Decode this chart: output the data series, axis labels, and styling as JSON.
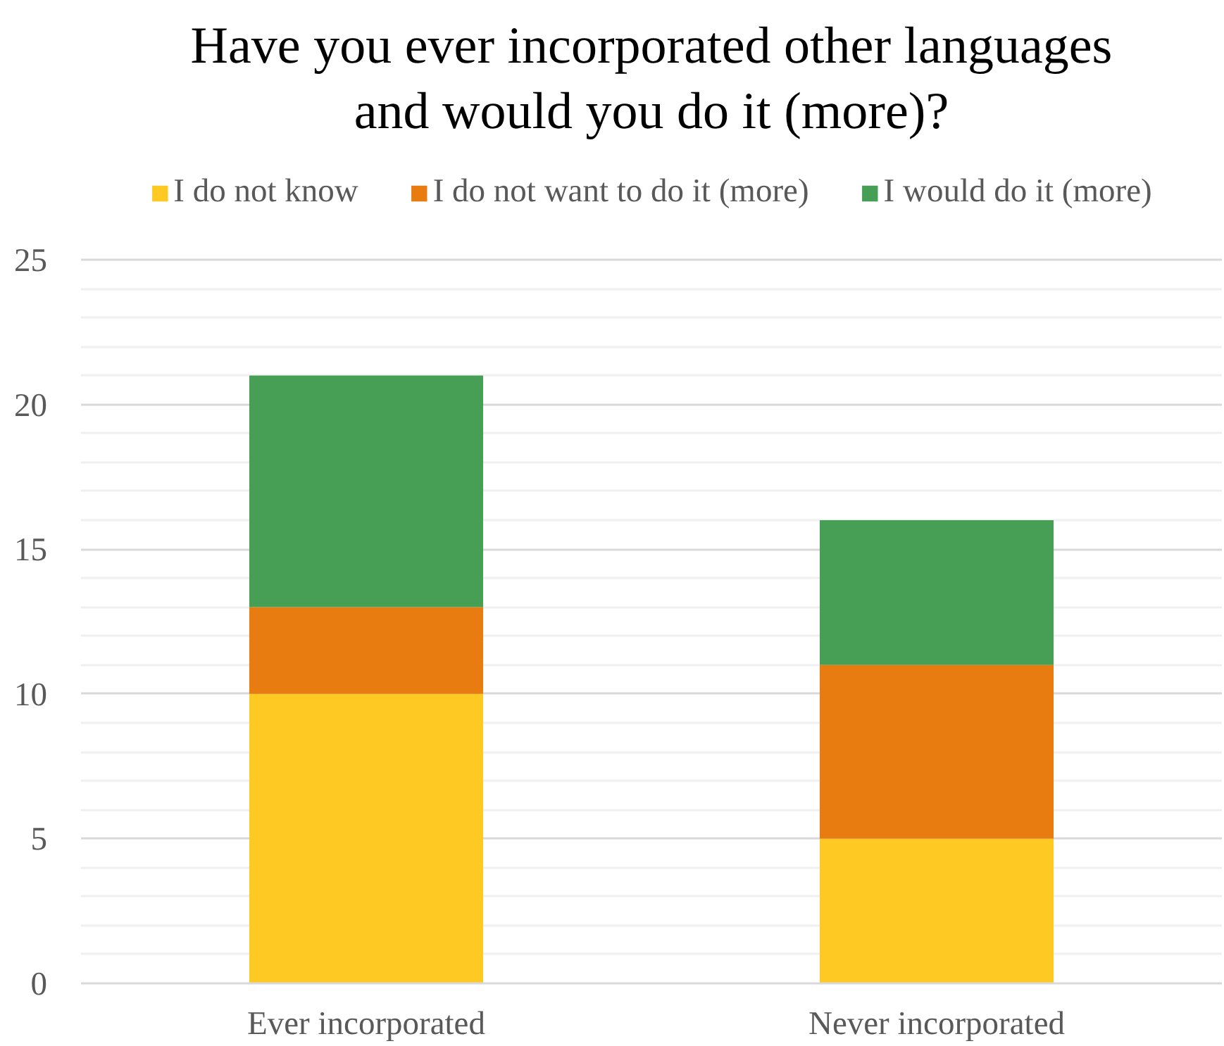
{
  "chart_data": {
    "type": "bar",
    "stacked": true,
    "title": "Have you ever incorporated other languages\nand would you do it (more)?",
    "categories": [
      "Ever incorporated",
      "Never incorporated"
    ],
    "series": [
      {
        "name": "I do not know",
        "color": "#fdc922",
        "values": [
          10,
          5
        ]
      },
      {
        "name": "I do not want to do it (more)",
        "color": "#e87c11",
        "values": [
          3,
          6
        ]
      },
      {
        "name": "I would do it (more)",
        "color": "#479f55",
        "values": [
          8,
          5
        ]
      }
    ],
    "ylim": [
      0,
      25
    ],
    "yticks": [
      0,
      {
        "value": 1,
        "label": null
      },
      {
        "value": 2,
        "label": null
      },
      {
        "value": 3,
        "label": null
      },
      {
        "value": 4,
        "label": null
      },
      5,
      {
        "value": 6,
        "label": null
      },
      {
        "value": 7,
        "label": null
      },
      {
        "value": 8,
        "label": null
      },
      {
        "value": 9,
        "label": null
      },
      10,
      {
        "value": 11,
        "label": null
      },
      {
        "value": 12,
        "label": null
      },
      {
        "value": 13,
        "label": null
      },
      {
        "value": 14,
        "label": null
      },
      15,
      {
        "value": 16,
        "label": null
      },
      {
        "value": 17,
        "label": null
      },
      {
        "value": 18,
        "label": null
      },
      {
        "value": 19,
        "label": null
      },
      20,
      {
        "value": 21,
        "label": null
      },
      {
        "value": 22,
        "label": null
      },
      {
        "value": 23,
        "label": null
      },
      {
        "value": 24,
        "label": null
      },
      25
    ],
    "grid": "y",
    "legend": "top"
  }
}
